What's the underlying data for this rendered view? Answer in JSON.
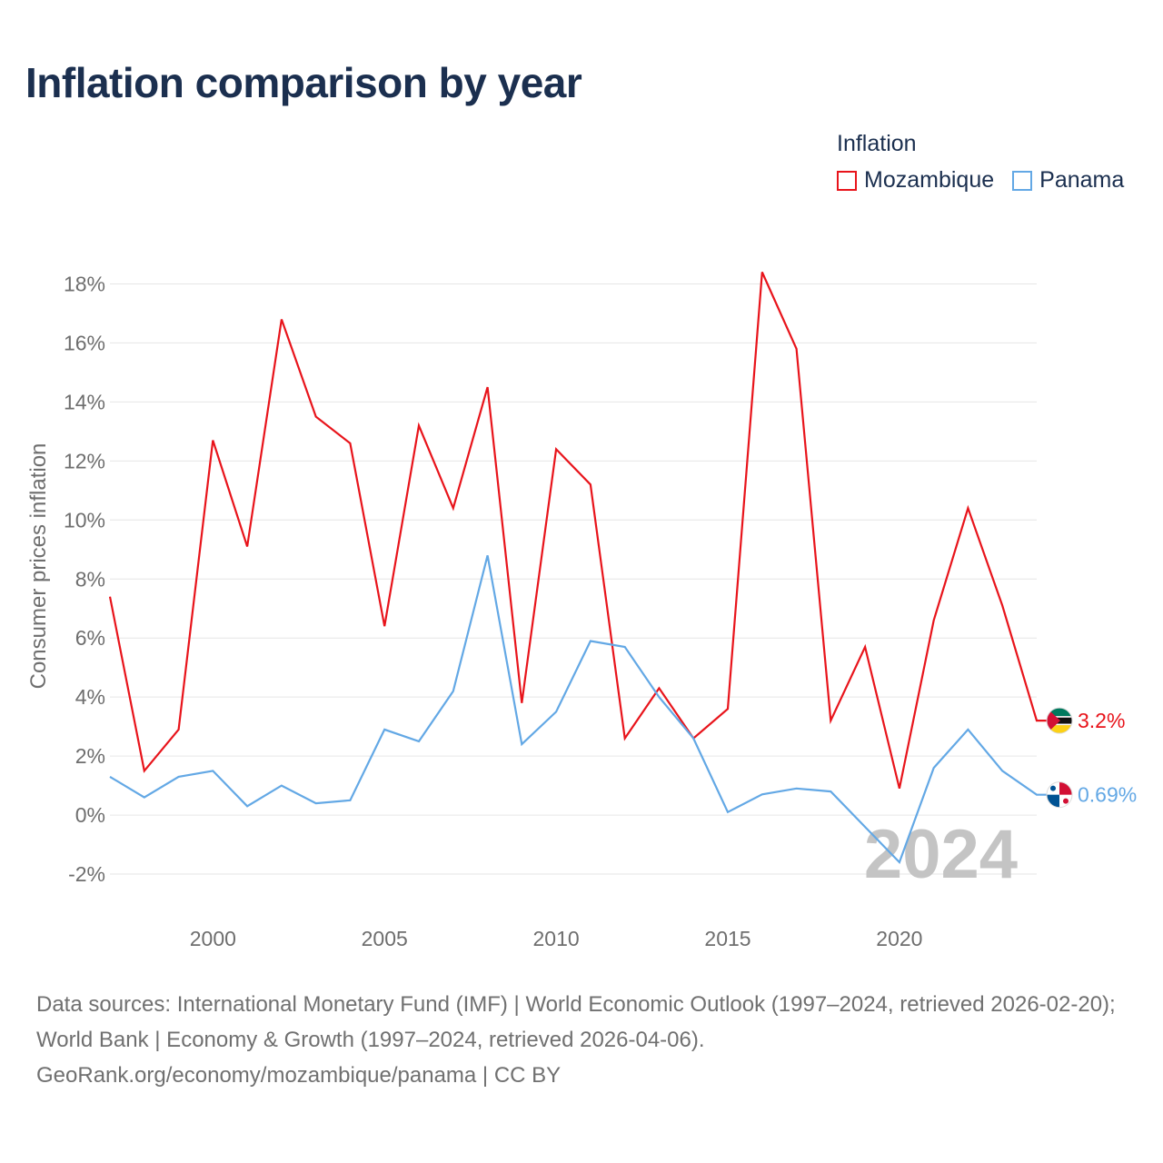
{
  "title": "Inflation comparison by year",
  "legend": {
    "title": "Inflation",
    "items": [
      {
        "label": "Mozambique",
        "color": "#e8141b"
      },
      {
        "label": "Panama",
        "color": "#63a8e5"
      }
    ]
  },
  "chart_data": {
    "type": "line",
    "title": "Inflation comparison by year",
    "xlabel": "",
    "ylabel": "Consumer prices inflation",
    "x": [
      1997,
      1998,
      1999,
      2000,
      2001,
      2002,
      2003,
      2004,
      2005,
      2006,
      2007,
      2008,
      2009,
      2010,
      2011,
      2012,
      2013,
      2014,
      2015,
      2016,
      2017,
      2018,
      2019,
      2020,
      2021,
      2022,
      2023,
      2024
    ],
    "xlim": [
      1997,
      2024
    ],
    "xticks": [
      2000,
      2005,
      2010,
      2015,
      2020
    ],
    "ylim": [
      -3.2,
      19
    ],
    "yticks": [
      -2,
      0,
      2,
      4,
      6,
      8,
      10,
      12,
      14,
      16,
      18
    ],
    "ytick_labels": [
      "-2%",
      "0%",
      "2%",
      "4%",
      "6%",
      "8%",
      "10%",
      "12%",
      "14%",
      "16%",
      "18%"
    ],
    "grid": true,
    "series": [
      {
        "name": "Mozambique",
        "color": "#e8141b",
        "values": [
          7.4,
          1.5,
          2.9,
          12.7,
          9.1,
          16.8,
          13.5,
          12.6,
          6.4,
          13.2,
          10.4,
          14.5,
          3.8,
          12.4,
          11.2,
          2.6,
          4.3,
          2.6,
          3.6,
          18.4,
          15.8,
          3.2,
          5.7,
          0.9,
          6.6,
          10.4,
          7.1,
          3.2
        ],
        "end_label": "3.2%"
      },
      {
        "name": "Panama",
        "color": "#63a8e5",
        "values": [
          1.3,
          0.6,
          1.3,
          1.5,
          0.3,
          1.0,
          0.4,
          0.5,
          2.9,
          2.5,
          4.2,
          8.8,
          2.4,
          3.5,
          5.9,
          5.7,
          4.0,
          2.6,
          0.1,
          0.7,
          0.9,
          0.8,
          -0.4,
          -1.6,
          1.6,
          2.9,
          1.5,
          0.69
        ],
        "end_label": "0.69%"
      }
    ],
    "year_watermark": "2024"
  },
  "source": {
    "line1": "Data sources: International Monetary Fund (IMF) | World Economic Outlook (1997–2024, retrieved 2026-02-20); World Bank | Economy & Growth (1997–2024, retrieved 2026-04-06).",
    "line2": "GeoRank.org/economy/mozambique/panama | CC BY"
  }
}
